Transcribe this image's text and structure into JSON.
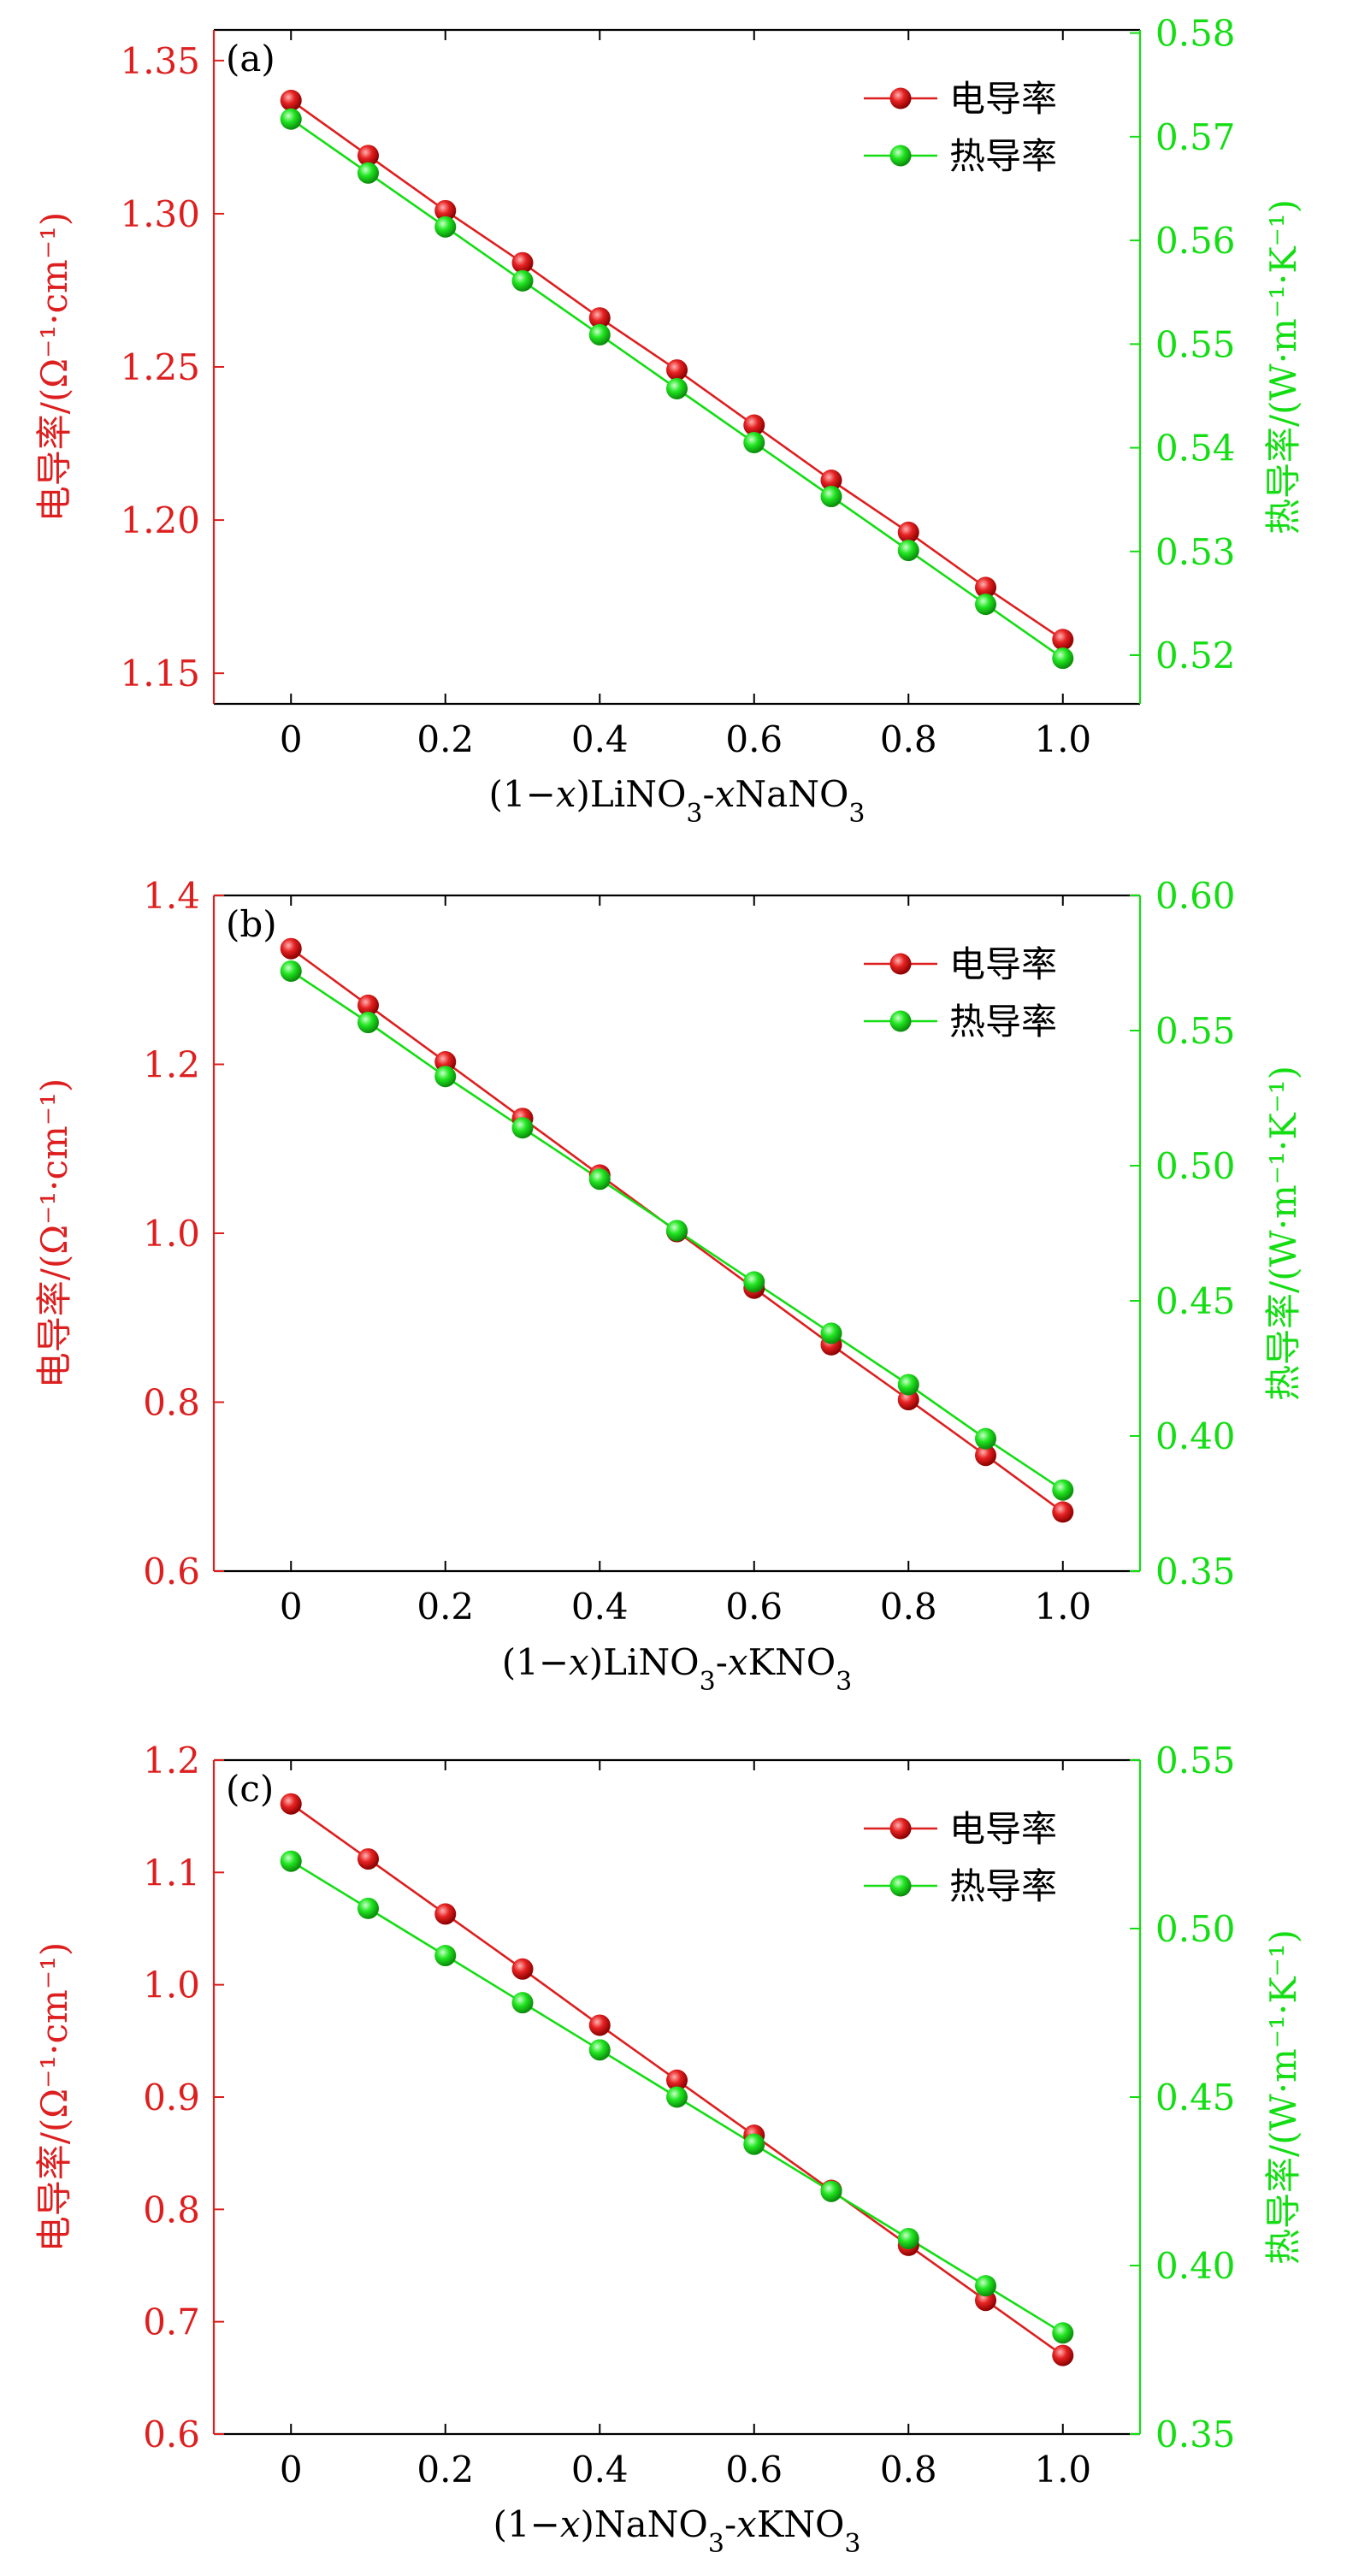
{
  "colors": {
    "left": "#dd1f1f",
    "right": "#14dd14",
    "axis": "#000000"
  },
  "legend_labels": [
    "电导率",
    "热导率"
  ],
  "chart_data": [
    {
      "type": "line",
      "panel_label": "(a)",
      "xlabel_parts": [
        "(1−",
        "x",
        ")LiNO",
        "3",
        "-",
        "x",
        "NaNO",
        "3"
      ],
      "ylabel_left": "电导率/(Ω⁻¹·cm⁻¹)",
      "ylabel_right": "热导率/(W·m⁻¹·K⁻¹)",
      "x": [
        0,
        0.1,
        0.2,
        0.3,
        0.4,
        0.5,
        0.6,
        0.7,
        0.8,
        0.9,
        1.0
      ],
      "xlim": [
        -0.1,
        1.1
      ],
      "xticks": [
        0,
        0.2,
        0.4,
        0.6,
        0.8,
        1.0
      ],
      "xtick_labels": [
        "0",
        "0.2",
        "0.4",
        "0.6",
        "0.8",
        "1.0"
      ],
      "ylim_left": [
        1.14,
        1.36
      ],
      "yticks_left": [
        1.15,
        1.2,
        1.25,
        1.3,
        1.35
      ],
      "ytick_labels_left": [
        "1.15",
        "1.20",
        "1.25",
        "1.30",
        "1.35"
      ],
      "ylim_right": [
        0.5153,
        0.5803
      ],
      "yticks_right": [
        0.52,
        0.53,
        0.54,
        0.55,
        0.56,
        0.57,
        0.58
      ],
      "ytick_labels_right": [
        "0.52",
        "0.53",
        "0.54",
        "0.55",
        "0.56",
        "0.57",
        "0.58"
      ],
      "legend_position": "top-right",
      "series": [
        {
          "name": "电导率",
          "axis": "left",
          "color": "#dd1f1f",
          "values": [
            1.337,
            1.319,
            1.301,
            1.284,
            1.266,
            1.249,
            1.231,
            1.213,
            1.196,
            1.178,
            1.161
          ]
        },
        {
          "name": "热导率",
          "axis": "right",
          "color": "#14dd14",
          "values": [
            0.5717,
            0.5665,
            0.5613,
            0.5561,
            0.5509,
            0.5457,
            0.5405,
            0.5353,
            0.5301,
            0.5249,
            0.5197
          ]
        }
      ]
    },
    {
      "type": "line",
      "panel_label": "(b)",
      "xlabel_parts": [
        "(1−",
        "x",
        ")LiNO",
        "3",
        "-",
        "x",
        "KNO",
        "3"
      ],
      "ylabel_left": "电导率/(Ω⁻¹·cm⁻¹)",
      "ylabel_right": "热导率/(W·m⁻¹·K⁻¹)",
      "x": [
        0,
        0.1,
        0.2,
        0.3,
        0.4,
        0.5,
        0.6,
        0.7,
        0.8,
        0.9,
        1.0
      ],
      "xlim": [
        -0.1,
        1.1
      ],
      "xticks": [
        0,
        0.2,
        0.4,
        0.6,
        0.8,
        1.0
      ],
      "xtick_labels": [
        "0",
        "0.2",
        "0.4",
        "0.6",
        "0.8",
        "1.0"
      ],
      "ylim_left": [
        0.6,
        1.4
      ],
      "yticks_left": [
        0.6,
        0.8,
        1.0,
        1.2,
        1.4
      ],
      "ytick_labels_left": [
        "0.6",
        "0.8",
        "1.0",
        "1.2",
        "1.4"
      ],
      "ylim_right": [
        0.35,
        0.6
      ],
      "yticks_right": [
        0.35,
        0.4,
        0.45,
        0.5,
        0.55,
        0.6
      ],
      "ytick_labels_right": [
        "0.35",
        "0.40",
        "0.45",
        "0.50",
        "0.55",
        "0.60"
      ],
      "legend_position": "top-right",
      "series": [
        {
          "name": "电导率",
          "axis": "left",
          "color": "#dd1f1f",
          "values": [
            1.337,
            1.27,
            1.203,
            1.136,
            1.069,
            1.002,
            0.935,
            0.868,
            0.803,
            0.737,
            0.67
          ]
        },
        {
          "name": "热导率",
          "axis": "right",
          "color": "#14dd14",
          "values": [
            0.572,
            0.553,
            0.533,
            0.514,
            0.495,
            0.476,
            0.457,
            0.438,
            0.419,
            0.399,
            0.38
          ]
        }
      ]
    },
    {
      "type": "line",
      "panel_label": "(c)",
      "xlabel_parts": [
        "(1−",
        "x",
        ")NaNO",
        "3",
        "-",
        "x",
        "KNO",
        "3"
      ],
      "ylabel_left": "电导率/(Ω⁻¹·cm⁻¹)",
      "ylabel_right": "热导率/(W·m⁻¹·K⁻¹)",
      "x": [
        0,
        0.1,
        0.2,
        0.3,
        0.4,
        0.5,
        0.6,
        0.7,
        0.8,
        0.9,
        1.0
      ],
      "xlim": [
        -0.1,
        1.1
      ],
      "xticks": [
        0,
        0.2,
        0.4,
        0.6,
        0.8,
        1.0
      ],
      "xtick_labels": [
        "0",
        "0.2",
        "0.4",
        "0.6",
        "0.8",
        "1.0"
      ],
      "ylim_left": [
        0.6,
        1.2
      ],
      "yticks_left": [
        0.6,
        0.7,
        0.8,
        0.9,
        1.0,
        1.1,
        1.2
      ],
      "ytick_labels_left": [
        "0.6",
        "0.7",
        "0.8",
        "0.9",
        "1.0",
        "1.1",
        "1.2"
      ],
      "ylim_right": [
        0.35,
        0.55
      ],
      "yticks_right": [
        0.35,
        0.4,
        0.45,
        0.5,
        0.55
      ],
      "ytick_labels_right": [
        "0.35",
        "0.40",
        "0.45",
        "0.50",
        "0.55"
      ],
      "legend_position": "top-right",
      "series": [
        {
          "name": "电导率",
          "axis": "left",
          "color": "#dd1f1f",
          "values": [
            1.161,
            1.112,
            1.063,
            1.014,
            0.964,
            0.915,
            0.866,
            0.817,
            0.768,
            0.719,
            0.67
          ]
        },
        {
          "name": "热导率",
          "axis": "right",
          "color": "#14dd14",
          "values": [
            0.52,
            0.506,
            0.492,
            0.478,
            0.464,
            0.45,
            0.436,
            0.422,
            0.408,
            0.394,
            0.38
          ]
        }
      ]
    }
  ]
}
